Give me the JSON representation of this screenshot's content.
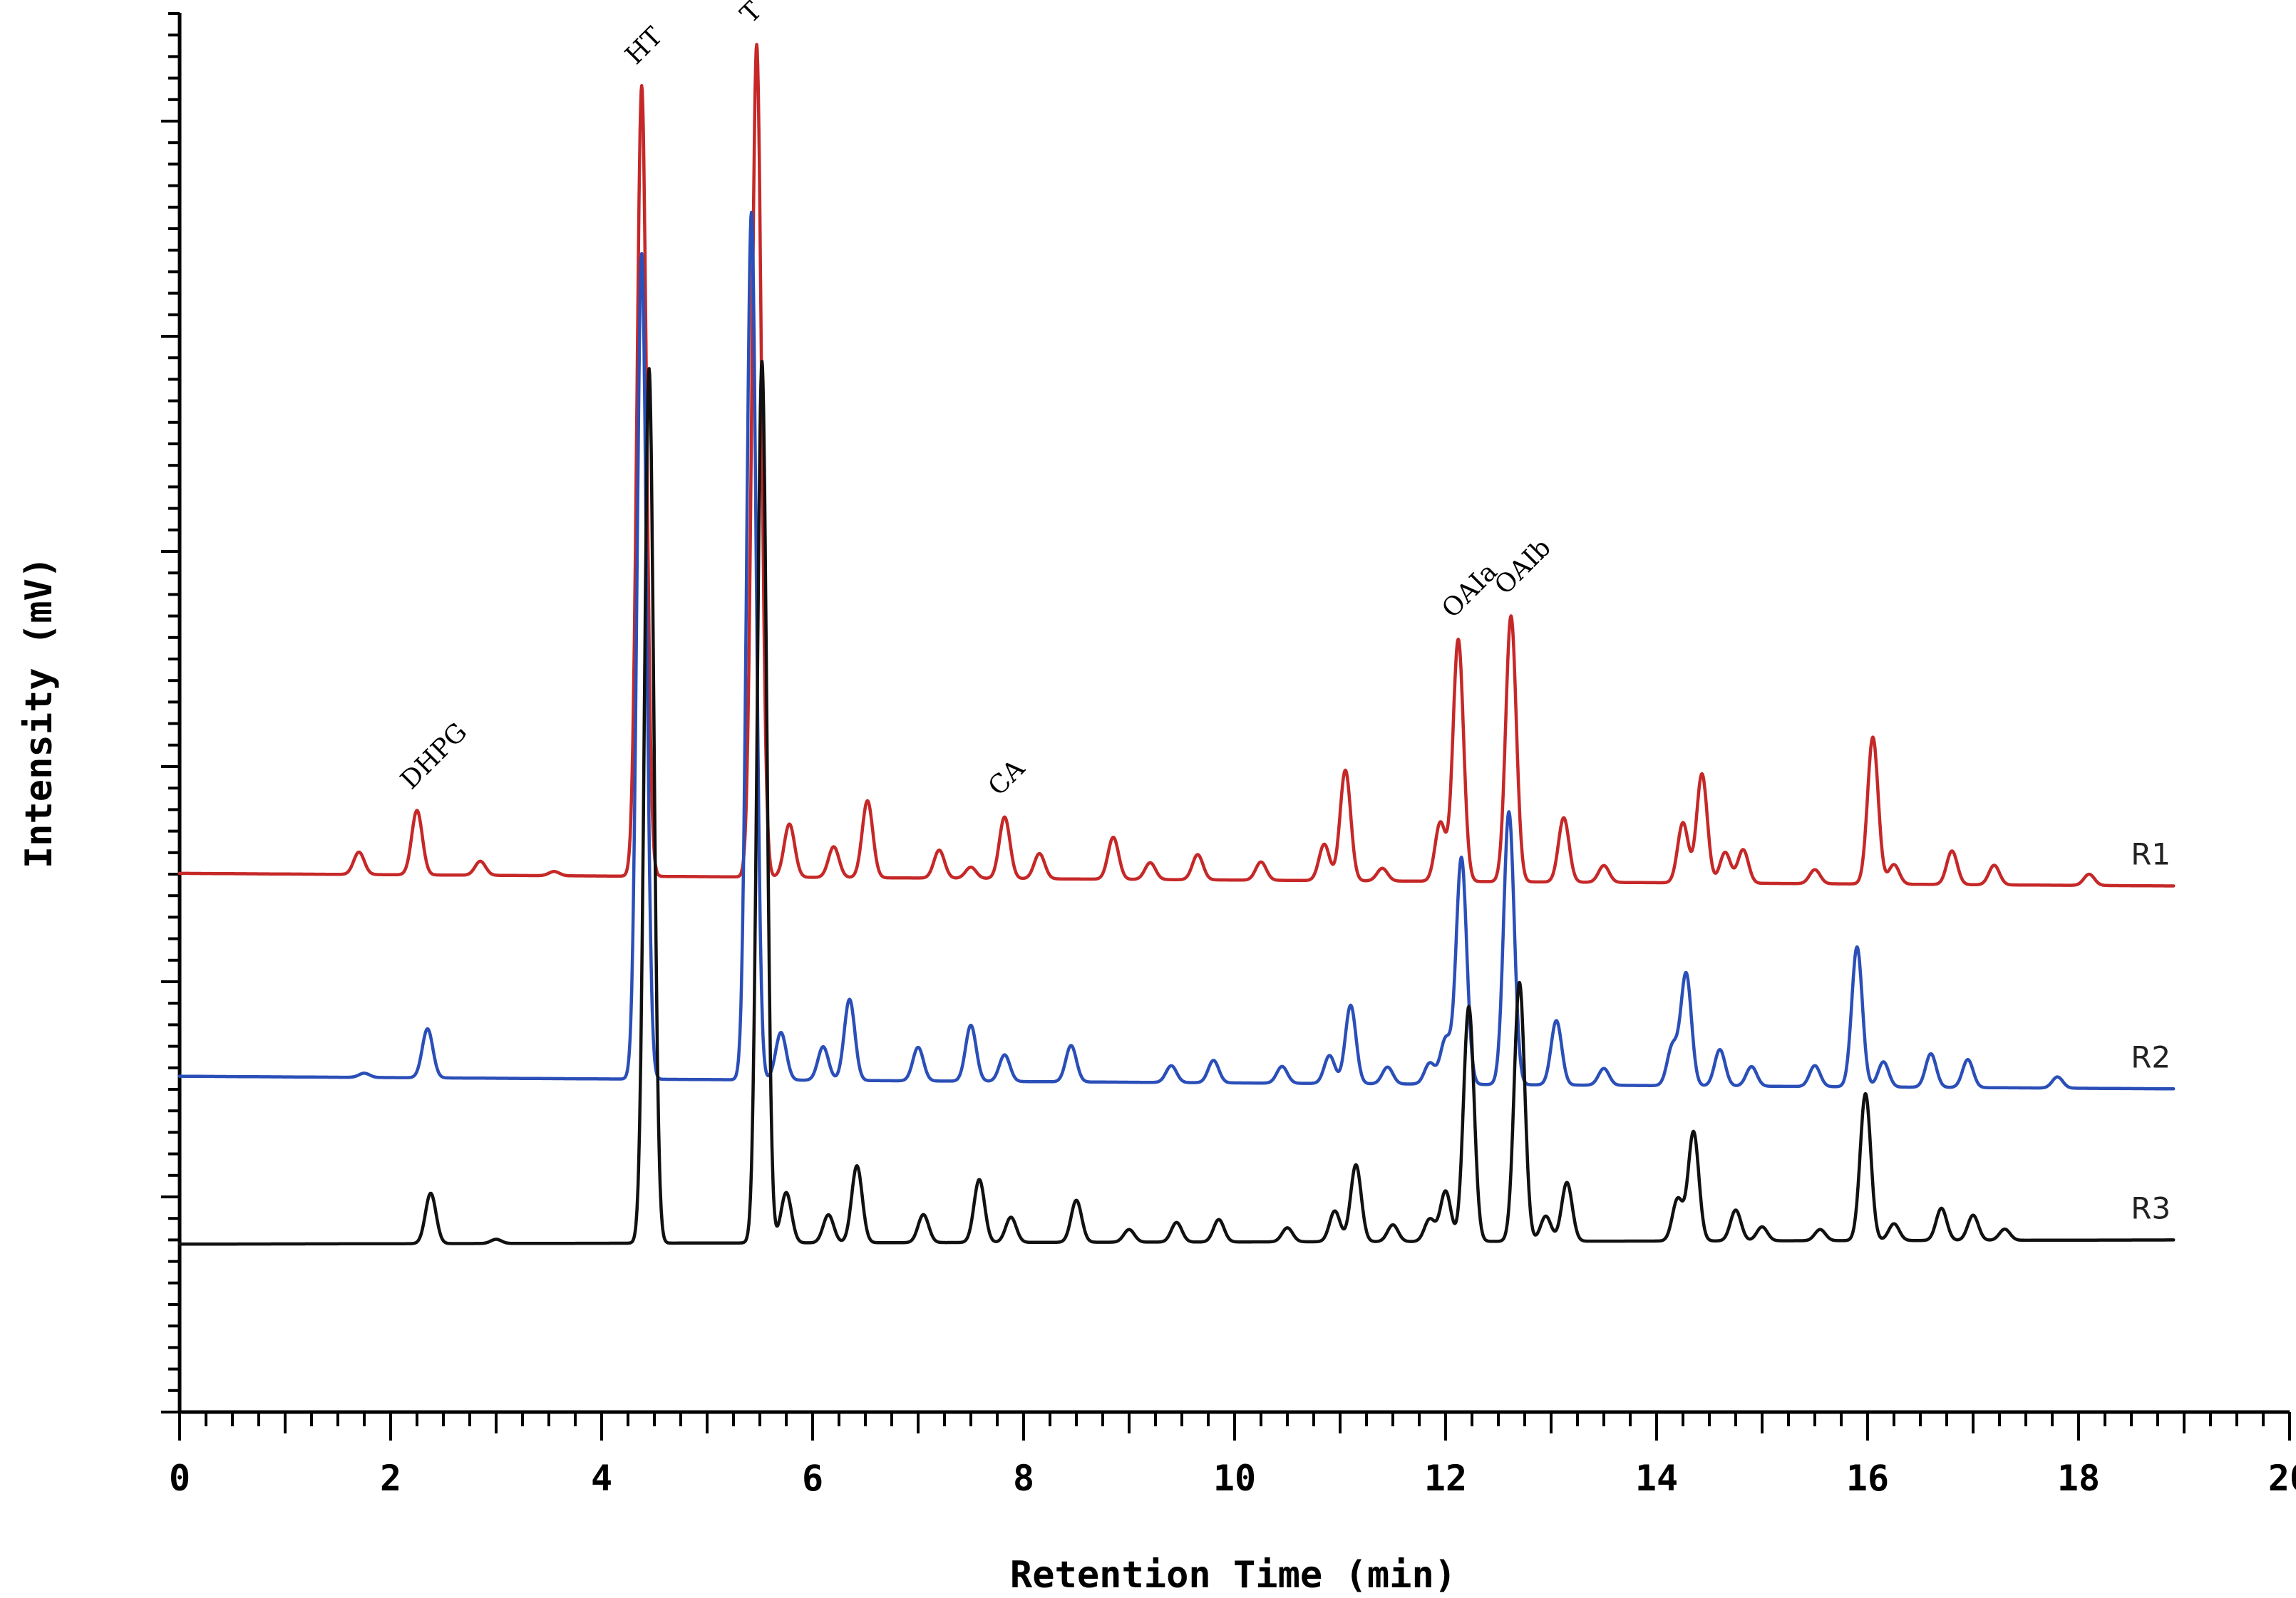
{
  "chart_data": {
    "type": "line",
    "title": "",
    "xlabel": "Retention Time (min)",
    "ylabel": "Intensity (mV)",
    "xlim": [
      0,
      20
    ],
    "ylim": [
      0,
      100
    ],
    "x_ticks": [
      "0",
      "2",
      "4",
      "6",
      "8",
      "10",
      "12",
      "14",
      "16",
      "18",
      "20"
    ],
    "x_tick_values": [
      0,
      2,
      4,
      6,
      8,
      10,
      12,
      14,
      16,
      18,
      20
    ],
    "grid": false,
    "series": [
      {
        "name": "R1",
        "color": "#c62828",
        "baseline": 38.5,
        "drift": -0.9,
        "x_end": 18.9,
        "peaks": [
          [
            1.7,
            1.6
          ],
          [
            2.25,
            4.6
          ],
          [
            2.85,
            1.0
          ],
          [
            3.55,
            0.3
          ],
          [
            4.38,
            56.5
          ],
          [
            5.47,
            59.5
          ],
          [
            5.78,
            3.8
          ],
          [
            6.2,
            2.2
          ],
          [
            6.52,
            5.5
          ],
          [
            7.2,
            2.0
          ],
          [
            7.5,
            0.8
          ],
          [
            7.82,
            4.4
          ],
          [
            8.15,
            1.8
          ],
          [
            8.85,
            3.0
          ],
          [
            9.2,
            1.2
          ],
          [
            9.65,
            1.8
          ],
          [
            10.25,
            1.3
          ],
          [
            10.85,
            2.6
          ],
          [
            11.05,
            7.9
          ],
          [
            11.4,
            0.9
          ],
          [
            11.95,
            4.2
          ],
          [
            12.12,
            17.3
          ],
          [
            12.62,
            19.0
          ],
          [
            13.12,
            4.6
          ],
          [
            13.5,
            1.2
          ],
          [
            14.25,
            4.3
          ],
          [
            14.43,
            7.8
          ],
          [
            14.65,
            2.2
          ],
          [
            14.82,
            2.4
          ],
          [
            15.5,
            1.0
          ],
          [
            16.05,
            10.5
          ],
          [
            16.25,
            1.4
          ],
          [
            16.8,
            2.4
          ],
          [
            17.2,
            1.4
          ],
          [
            18.1,
            0.8
          ]
        ],
        "peak_labels": [
          {
            "text": "DHPG",
            "x": 2.25
          },
          {
            "text": "HT",
            "x": 4.38
          },
          {
            "text": "T",
            "x": 5.47
          },
          {
            "text": "CA",
            "x": 7.82
          },
          {
            "text": "OAIa",
            "x": 12.12
          },
          {
            "text": "OAIb",
            "x": 12.62
          }
        ]
      },
      {
        "name": "R2",
        "color": "#2b4fb8",
        "baseline": 24.0,
        "drift": -0.9,
        "x_end": 18.9,
        "peaks": [
          [
            1.75,
            0.3
          ],
          [
            2.35,
            3.5
          ],
          [
            4.38,
            59.0
          ],
          [
            5.42,
            62.0
          ],
          [
            5.7,
            3.4
          ],
          [
            6.1,
            2.4
          ],
          [
            6.35,
            5.8
          ],
          [
            7.0,
            2.4
          ],
          [
            7.5,
            4.0
          ],
          [
            7.82,
            1.9
          ],
          [
            8.45,
            2.6
          ],
          [
            9.4,
            1.2
          ],
          [
            9.8,
            1.6
          ],
          [
            10.45,
            1.2
          ],
          [
            10.9,
            2.0
          ],
          [
            11.1,
            5.6
          ],
          [
            11.45,
            1.2
          ],
          [
            11.85,
            1.5
          ],
          [
            12.0,
            3.2
          ],
          [
            12.15,
            16.2
          ],
          [
            12.6,
            19.5
          ],
          [
            13.05,
            4.6
          ],
          [
            13.5,
            1.2
          ],
          [
            14.15,
            2.8
          ],
          [
            14.28,
            8.0
          ],
          [
            14.6,
            2.6
          ],
          [
            14.9,
            1.4
          ],
          [
            15.5,
            1.5
          ],
          [
            15.9,
            10.0
          ],
          [
            16.15,
            1.8
          ],
          [
            16.6,
            2.4
          ],
          [
            16.95,
            2.0
          ],
          [
            17.8,
            0.8
          ]
        ],
        "peak_labels": []
      },
      {
        "name": "R3",
        "color": "#111111",
        "baseline": 12.0,
        "drift": 0.3,
        "x_end": 18.9,
        "peaks": [
          [
            2.38,
            3.6
          ],
          [
            3.0,
            0.3
          ],
          [
            4.45,
            62.5
          ],
          [
            5.52,
            63.0
          ],
          [
            5.75,
            3.6
          ],
          [
            6.15,
            2.0
          ],
          [
            6.42,
            5.5
          ],
          [
            7.05,
            2.0
          ],
          [
            7.58,
            4.5
          ],
          [
            7.88,
            1.8
          ],
          [
            8.5,
            3.0
          ],
          [
            9.0,
            0.9
          ],
          [
            9.45,
            1.4
          ],
          [
            9.85,
            1.6
          ],
          [
            10.5,
            1.0
          ],
          [
            10.95,
            2.2
          ],
          [
            11.15,
            5.5
          ],
          [
            11.5,
            1.2
          ],
          [
            11.85,
            1.6
          ],
          [
            12.0,
            3.6
          ],
          [
            12.22,
            16.8
          ],
          [
            12.7,
            18.5
          ],
          [
            12.95,
            1.8
          ],
          [
            13.15,
            4.2
          ],
          [
            14.2,
            3.0
          ],
          [
            14.35,
            7.8
          ],
          [
            14.75,
            2.2
          ],
          [
            15.0,
            1.0
          ],
          [
            15.55,
            0.8
          ],
          [
            15.98,
            10.5
          ],
          [
            16.25,
            1.2
          ],
          [
            16.7,
            2.3
          ],
          [
            17.0,
            1.8
          ],
          [
            17.3,
            0.8
          ]
        ],
        "peak_labels": []
      }
    ]
  }
}
